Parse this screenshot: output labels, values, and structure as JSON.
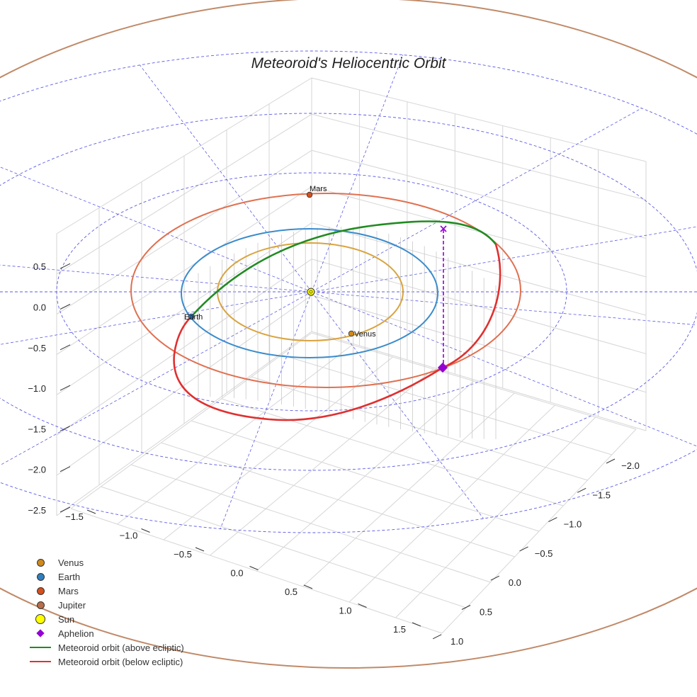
{
  "chart_data": {
    "type": "scatter3d",
    "title": "Meteoroid's Heliocentric Orbit",
    "x_ticks": [
      "−2.0",
      "−1.5",
      "−1.0",
      "−0.5",
      "0.0",
      "0.5",
      "1.0"
    ],
    "y_ticks": [
      "−1.5",
      "−1.0",
      "−0.5",
      "0.0",
      "0.5",
      "1.0",
      "1.5"
    ],
    "z_ticks": [
      "−2.5",
      "−2.0",
      "−1.5",
      "−1.0",
      "−0.5",
      "0.0",
      "0.5"
    ],
    "planets": [
      {
        "name": "Venus",
        "label": "Venus",
        "color": "#d08a1a",
        "orbit_color": "#d9a441",
        "a": 0.72
      },
      {
        "name": "Earth",
        "label": "Earth",
        "color": "#2f7fc0",
        "orbit_color": "#3a8ccc",
        "a": 1.0
      },
      {
        "name": "Mars",
        "label": "Mars",
        "color": "#d4501e",
        "orbit_color": "#e07050",
        "a": 1.52
      },
      {
        "name": "Jupiter",
        "label": "",
        "color": "#b86e4a",
        "orbit_color": "#c08a68",
        "a": 5.2
      }
    ],
    "sun": {
      "name": "Sun",
      "color": "#ffff00",
      "position": [
        0,
        0,
        0
      ]
    },
    "meteoroid": {
      "above_ecliptic": {
        "name": "Meteoroid orbit (above ecliptic)",
        "color": "#228b22"
      },
      "below_ecliptic": {
        "name": "Meteoroid orbit (below ecliptic)",
        "color": "#e03030"
      },
      "aphelion": {
        "name": "Aphelion",
        "color": "#9400d3"
      }
    },
    "ecliptic_reference_circles": [
      "dashed",
      "blue"
    ]
  },
  "legend": {
    "items": [
      {
        "label": "Venus",
        "marker": "dot",
        "color": "#d08a1a"
      },
      {
        "label": "Earth",
        "marker": "dot",
        "color": "#2f7fc0"
      },
      {
        "label": "Mars",
        "marker": "dot",
        "color": "#d4501e"
      },
      {
        "label": "Jupiter",
        "marker": "dot",
        "color": "#b86e4a"
      },
      {
        "label": "Sun",
        "marker": "sun",
        "color": "#ffff00"
      },
      {
        "label": "Aphelion",
        "marker": "diamond",
        "color": "#9400d3"
      },
      {
        "label": "Meteoroid orbit (above ecliptic)",
        "marker": "line",
        "color": "#228b22"
      },
      {
        "label": "Meteoroid orbit (below ecliptic)",
        "marker": "line",
        "color": "#e03030"
      }
    ]
  }
}
